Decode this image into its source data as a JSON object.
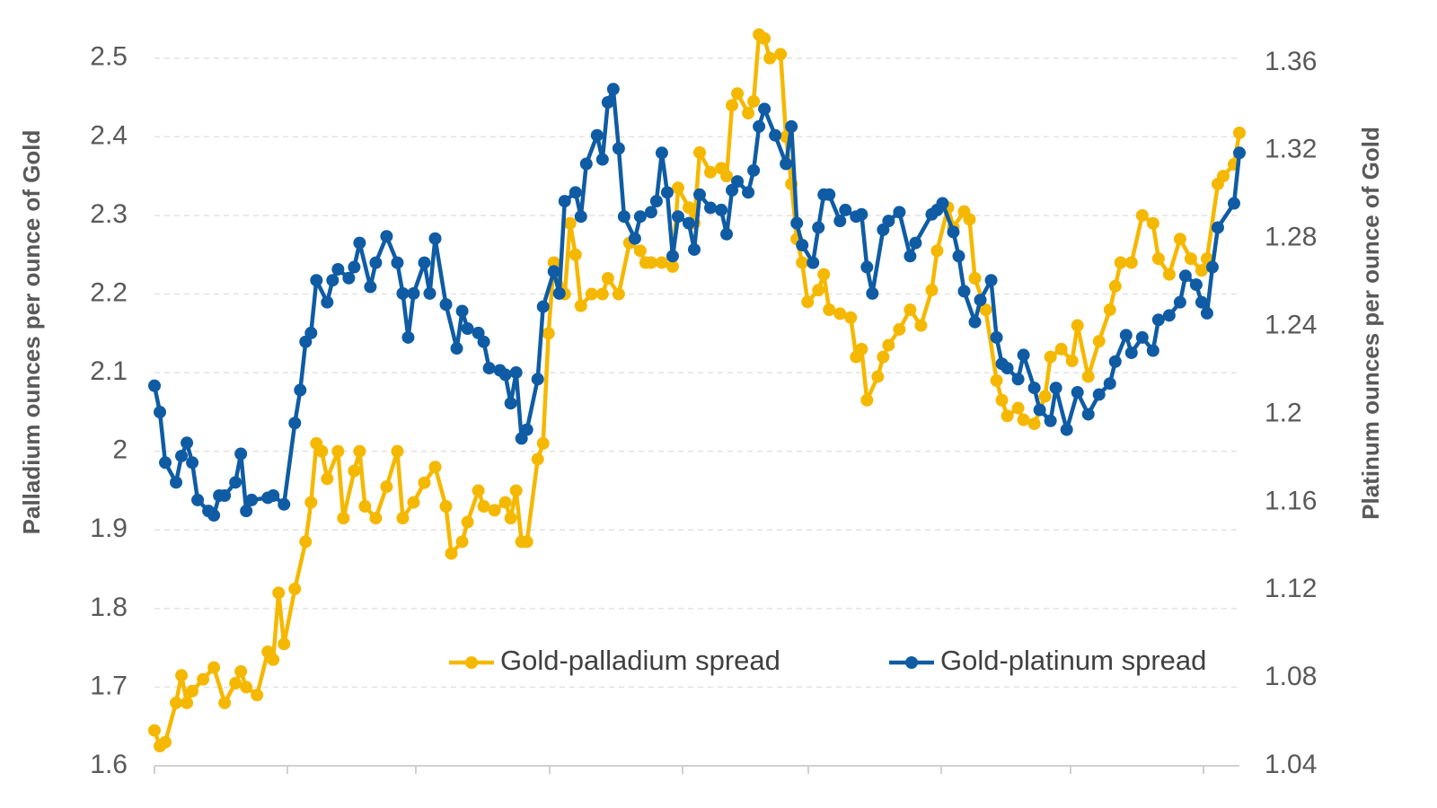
{
  "chart_data": {
    "type": "line",
    "y_label": "Palladium ounces per ounce of Gold",
    "y2_label": "Platinum ounces per ounce of Gold",
    "xlim": [
      0,
      201
    ],
    "ylim": [
      1.6,
      2.55
    ],
    "yticks": [
      1.6,
      1.7,
      1.8,
      1.9,
      2,
      2.1,
      2.2,
      2.3,
      2.4,
      2.5
    ],
    "y2lim": [
      1.04,
      1.38
    ],
    "y2ticks": [
      1.04,
      1.08,
      1.12,
      1.16,
      1.2,
      1.24,
      1.28,
      1.32,
      1.36
    ],
    "grid": true,
    "series": [
      {
        "name": "Gold-palladium spread",
        "color": "#f5b800",
        "x": [
          0,
          1,
          2,
          4,
          5,
          6,
          7,
          9,
          11,
          13,
          15,
          16,
          17,
          19,
          21,
          22,
          23,
          24,
          26,
          28,
          29,
          30,
          31,
          32,
          34,
          35,
          37,
          38,
          39,
          41,
          43,
          45,
          46,
          48,
          50,
          52,
          54,
          55,
          57,
          58,
          60,
          61,
          63,
          65,
          66,
          67,
          68,
          69,
          71,
          72,
          73,
          74,
          76,
          77,
          78,
          79,
          81,
          83,
          84,
          86,
          88,
          90,
          91,
          92,
          94,
          96,
          97,
          99,
          100,
          101,
          103,
          105,
          106,
          107,
          108,
          110,
          111,
          112,
          113,
          114,
          116,
          117,
          118,
          119,
          120,
          121,
          123,
          124,
          125,
          127,
          129,
          130,
          131,
          132,
          134,
          135,
          136,
          138,
          140,
          142,
          144,
          145,
          147,
          148,
          150,
          151,
          152,
          154,
          156,
          157,
          158,
          160,
          161,
          163,
          165,
          166,
          168,
          170,
          171,
          173,
          175,
          177,
          178,
          179,
          181,
          183,
          185,
          186,
          188,
          190,
          192,
          194,
          195,
          197,
          198,
          200,
          201
        ],
        "values": [
          1.645,
          1.625,
          1.63,
          1.68,
          1.715,
          1.68,
          1.695,
          1.71,
          1.725,
          1.68,
          1.705,
          1.72,
          1.7,
          1.69,
          1.745,
          1.735,
          1.82,
          1.755,
          1.825,
          1.885,
          1.935,
          2.01,
          2.0,
          1.965,
          2.0,
          1.915,
          1.975,
          2.0,
          1.93,
          1.915,
          1.955,
          2.0,
          1.915,
          1.935,
          1.96,
          1.98,
          1.93,
          1.87,
          1.885,
          1.91,
          1.95,
          1.93,
          1.925,
          1.935,
          1.915,
          1.95,
          1.885,
          1.885,
          1.99,
          2.01,
          2.15,
          2.24,
          2.2,
          2.29,
          2.25,
          2.185,
          2.2,
          2.2,
          2.22,
          2.2,
          2.265,
          2.255,
          2.24,
          2.24,
          2.24,
          2.235,
          2.335,
          2.31,
          2.29,
          2.38,
          2.355,
          2.36,
          2.35,
          2.44,
          2.455,
          2.43,
          2.445,
          2.53,
          2.525,
          2.5,
          2.505,
          2.4,
          2.34,
          2.27,
          2.24,
          2.19,
          2.205,
          2.225,
          2.18,
          2.175,
          2.17,
          2.12,
          2.13,
          2.065,
          2.095,
          2.12,
          2.135,
          2.155,
          2.18,
          2.16,
          2.205,
          2.255,
          2.31,
          2.285,
          2.305,
          2.295,
          2.22,
          2.18,
          2.09,
          2.065,
          2.045,
          2.055,
          2.04,
          2.035,
          2.07,
          2.12,
          2.13,
          2.115,
          2.16,
          2.095,
          2.14,
          2.18,
          2.21,
          2.24,
          2.24,
          2.3,
          2.29,
          2.245,
          2.225,
          2.27,
          2.245,
          2.23,
          2.245,
          2.34,
          2.35,
          2.365,
          2.405
        ]
      },
      {
        "name": "Gold-platinum spread",
        "color": "#0f5ca4",
        "axis": "y2",
        "x": [
          0,
          1,
          2,
          4,
          5,
          6,
          7,
          8,
          10,
          11,
          12,
          13,
          15,
          16,
          17,
          18,
          21,
          22,
          24,
          26,
          27,
          28,
          29,
          30,
          32,
          33,
          34,
          36,
          37,
          38,
          40,
          41,
          43,
          45,
          46,
          47,
          48,
          50,
          51,
          52,
          54,
          56,
          57,
          58,
          60,
          61,
          62,
          64,
          65,
          66,
          67,
          68,
          69,
          71,
          72,
          74,
          75,
          76,
          78,
          79,
          80,
          82,
          83,
          84,
          85,
          86,
          87,
          89,
          90,
          92,
          93,
          94,
          95,
          96,
          97,
          99,
          100,
          101,
          103,
          105,
          106,
          107,
          108,
          110,
          111,
          112,
          113,
          115,
          117,
          118,
          119,
          120,
          122,
          123,
          124,
          125,
          127,
          128,
          130,
          131,
          132,
          133,
          135,
          136,
          138,
          140,
          141,
          144,
          145,
          146,
          148,
          149,
          150,
          152,
          153,
          155,
          156,
          157,
          158,
          160,
          161,
          163,
          164,
          166,
          167,
          169,
          171,
          173,
          175,
          177,
          178,
          180,
          181,
          183,
          185,
          186,
          188,
          190,
          191,
          193,
          194,
          195,
          196,
          197,
          200,
          201
        ],
        "values": [
          1.213,
          1.201,
          1.178,
          1.169,
          1.181,
          1.187,
          1.178,
          1.161,
          1.156,
          1.154,
          1.163,
          1.163,
          1.169,
          1.182,
          1.156,
          1.161,
          1.162,
          1.163,
          1.159,
          1.196,
          1.211,
          1.233,
          1.237,
          1.261,
          1.251,
          1.261,
          1.266,
          1.262,
          1.267,
          1.278,
          1.258,
          1.269,
          1.281,
          1.269,
          1.255,
          1.235,
          1.255,
          1.269,
          1.255,
          1.28,
          1.25,
          1.23,
          1.247,
          1.239,
          1.237,
          1.233,
          1.221,
          1.22,
          1.218,
          1.205,
          1.219,
          1.189,
          1.193,
          1.216,
          1.249,
          1.265,
          1.255,
          1.297,
          1.301,
          1.29,
          1.314,
          1.327,
          1.316,
          1.342,
          1.348,
          1.321,
          1.29,
          1.28,
          1.29,
          1.292,
          1.297,
          1.319,
          1.301,
          1.272,
          1.29,
          1.287,
          1.275,
          1.3,
          1.294,
          1.293,
          1.282,
          1.302,
          1.306,
          1.301,
          1.311,
          1.331,
          1.339,
          1.327,
          1.314,
          1.331,
          1.287,
          1.277,
          1.269,
          1.285,
          1.3,
          1.3,
          1.288,
          1.293,
          1.29,
          1.291,
          1.267,
          1.255,
          1.284,
          1.288,
          1.292,
          1.272,
          1.278,
          1.291,
          1.293,
          1.296,
          1.283,
          1.272,
          1.256,
          1.242,
          1.252,
          1.261,
          1.235,
          1.223,
          1.221,
          1.216,
          1.227,
          1.212,
          1.202,
          1.197,
          1.212,
          1.193,
          1.21,
          1.2,
          1.209,
          1.214,
          1.224,
          1.236,
          1.228,
          1.235,
          1.229,
          1.243,
          1.245,
          1.251,
          1.263,
          1.259,
          1.251,
          1.246,
          1.267,
          1.285,
          1.296,
          1.319
        ]
      }
    ]
  }
}
